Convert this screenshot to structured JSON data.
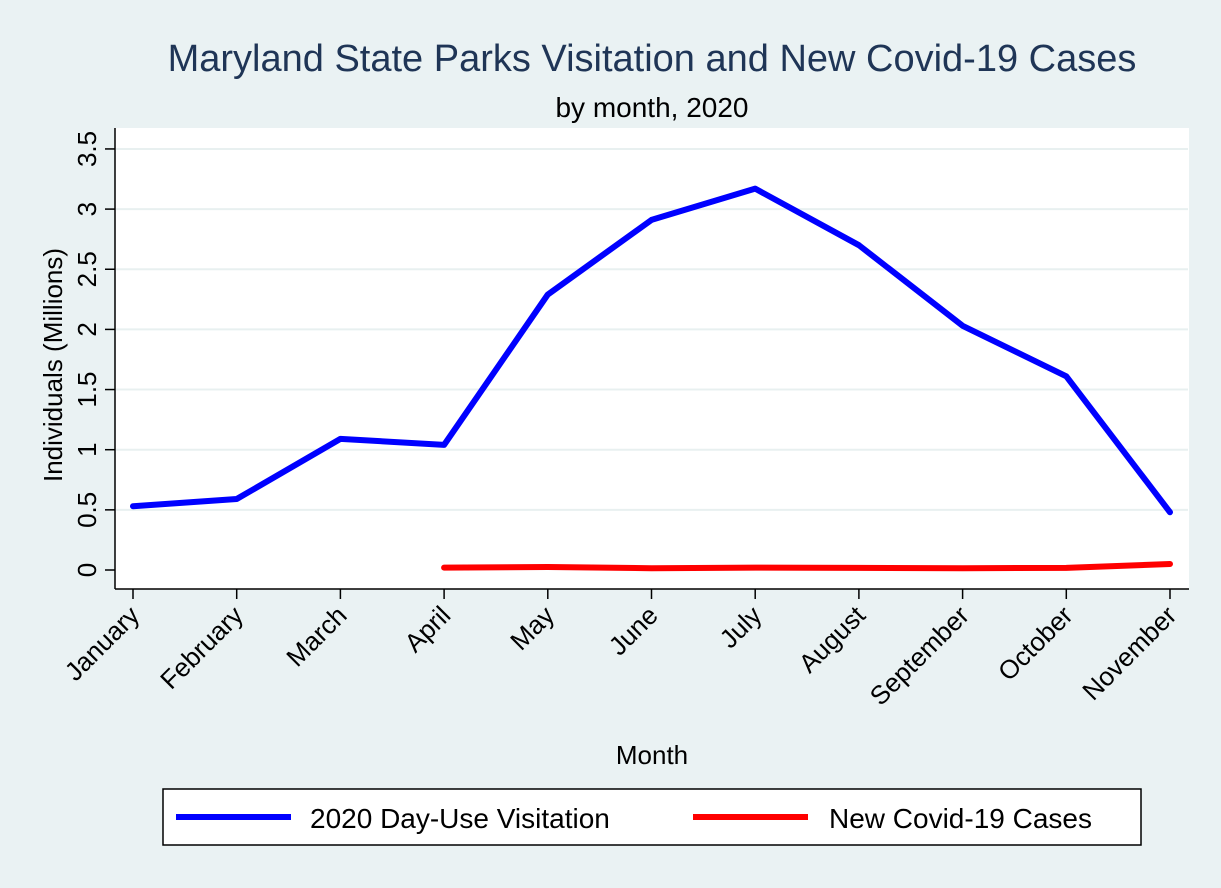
{
  "chart_data": {
    "type": "line",
    "title": "Maryland State Parks Visitation and New Covid-19 Cases",
    "subtitle": "by month, 2020",
    "xlabel": "Month",
    "ylabel": "Individuals (Millions)",
    "ylim": [
      0,
      3.5
    ],
    "yticks": [
      0,
      0.5,
      1,
      1.5,
      2,
      2.5,
      3,
      3.5
    ],
    "ytick_labels": [
      "0",
      "0.5",
      "1",
      "1.5",
      "2",
      "2.5",
      "3",
      "3.5"
    ],
    "grid": true,
    "legend_position": "bottom",
    "categories": [
      "January",
      "February",
      "March",
      "April",
      "May",
      "June",
      "July",
      "August",
      "September",
      "October",
      "November"
    ],
    "series": [
      {
        "name": "2020 Day-Use Visitation",
        "color": "#0000ff",
        "values": [
          0.53,
          0.59,
          1.09,
          1.04,
          2.29,
          2.91,
          3.17,
          2.7,
          2.03,
          1.61,
          0.48
        ]
      },
      {
        "name": "New Covid-19 Cases",
        "color": "#ff0000",
        "values": [
          null,
          null,
          null,
          0.02,
          0.025,
          0.015,
          0.02,
          0.018,
          0.015,
          0.018,
          0.05
        ]
      }
    ]
  }
}
